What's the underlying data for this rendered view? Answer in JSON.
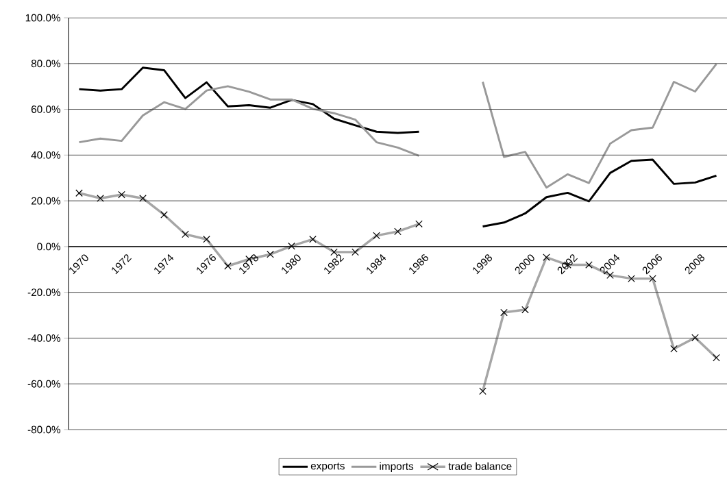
{
  "chart_data": {
    "type": "line",
    "categories": [
      "1970",
      null,
      "1972",
      null,
      "1974",
      null,
      "1976",
      null,
      "1978",
      null,
      "1980",
      null,
      "1982",
      null,
      "1984",
      null,
      "1986",
      null,
      null,
      "1998",
      null,
      "2000",
      null,
      "2002",
      null,
      "2004",
      null,
      "2006",
      null,
      "2008",
      null
    ],
    "series": [
      {
        "name": "exports",
        "color": "#000000",
        "values": [
          68.8,
          68.2,
          68.8,
          78.2,
          77.1,
          64.9,
          71.8,
          61.3,
          61.8,
          60.7,
          64.1,
          62.3,
          55.9,
          53.0,
          50.2,
          49.7,
          50.2,
          null,
          null,
          8.8,
          10.5,
          14.5,
          21.6,
          23.5,
          19.8,
          32.2,
          37.5,
          38.0,
          27.4,
          28.0,
          31.0
        ]
      },
      {
        "name": "imports",
        "color": "#999999",
        "values": [
          45.6,
          47.2,
          46.2,
          57.3,
          63.1,
          60.1,
          68.2,
          70.1,
          67.7,
          64.3,
          64.3,
          60.2,
          58.3,
          55.5,
          45.6,
          43.3,
          39.7,
          null,
          null,
          72.0,
          39.2,
          41.4,
          25.8,
          31.6,
          27.8,
          45.0,
          50.9,
          52.0,
          72.0,
          67.8,
          79.8
        ]
      },
      {
        "name": "trade balance",
        "color": "#a6a6a6",
        "marker": "cross",
        "values": [
          23.4,
          21.1,
          22.7,
          21.1,
          13.9,
          5.4,
          3.2,
          -8.5,
          -5.5,
          -3.4,
          0.2,
          3.2,
          -2.4,
          -2.4,
          4.8,
          6.6,
          9.9,
          null,
          null,
          -63.2,
          -28.8,
          -27.6,
          -4.7,
          -8.0,
          -8.0,
          -12.5,
          -14.0,
          -14.0,
          -44.7,
          -39.8,
          -48.6
        ]
      }
    ],
    "ylim": [
      -80,
      100
    ],
    "yticks": [
      {
        "value": -80,
        "label": "-80.0%"
      },
      {
        "value": -60,
        "label": "-60.0%"
      },
      {
        "value": -40,
        "label": "-40.0%"
      },
      {
        "value": -20,
        "label": "-20.0%"
      },
      {
        "value": 0,
        "label": "0.0%"
      },
      {
        "value": 20,
        "label": "20.0%"
      },
      {
        "value": 40,
        "label": "40.0%"
      },
      {
        "value": 60,
        "label": "60.0%"
      },
      {
        "value": 80,
        "label": "80.0%"
      },
      {
        "value": 100,
        "label": "100.0%"
      }
    ],
    "grid": "y",
    "legend": "bottom"
  }
}
